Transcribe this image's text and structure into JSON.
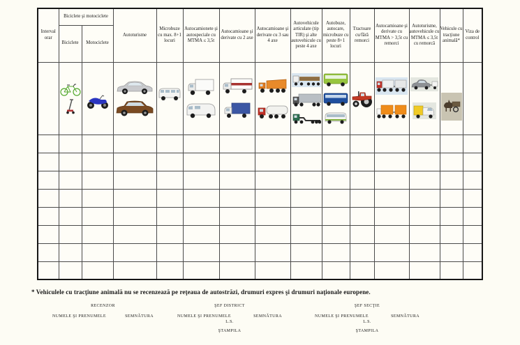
{
  "table": {
    "corner_header": "Interval orar",
    "group_header": "Biciclete şi motociclete",
    "columns": [
      {
        "label": "Biciclete",
        "images": [
          "bicycle-icon",
          "kick-scooter-icon"
        ]
      },
      {
        "label": "Motociclete",
        "images": [
          "motorcycle-icon"
        ]
      },
      {
        "label": "Autoturisme",
        "images": [
          "sedan-car-icon",
          "suv-car-icon"
        ]
      },
      {
        "label": "Microbuze cu max. 8+1 locuri",
        "images": [
          "minibus-icon"
        ]
      },
      {
        "label": "Autocamionete şi autospeciale cu MTMA ≤ 3,5t",
        "images": [
          "light-box-truck-icon",
          "cargo-van-icon"
        ]
      },
      {
        "label": "Autocamioane şi derivate cu 2 axe",
        "images": [
          "box-truck-2-axle-icon",
          "tarpaulin-truck-icon"
        ]
      },
      {
        "label": "Autocamioane şi derivate cu 3 sau 4 axe",
        "images": [
          "dump-truck-icon",
          "tanker-truck-icon"
        ]
      },
      {
        "label": "Autovehicule articulate (tip TIR) şi alte autovehicule cu peste 4 axe",
        "images": [
          "timber-truck-icon",
          "semi-trailer-truck-icon",
          "low-loader-truck-icon"
        ]
      },
      {
        "label": "Autobuze, autocare, microbuze cu peste 8+1 locuri",
        "images": [
          "city-bus-icon",
          "coach-bus-icon",
          "large-minibus-icon"
        ]
      },
      {
        "label": "Tractoare cu/fără remorci",
        "images": [
          "farm-tractor-icon"
        ]
      },
      {
        "label": "Autocamioane şi derivate cu MTMA > 3,5t cu remorci",
        "images": [
          "truck-with-trailer-icon",
          "orange-truck-with-trailer-icon"
        ]
      },
      {
        "label": "Autoturisme, autovehicule cu MTMA ≤ 3,5t cu remorcă",
        "images": [
          "car-with-trailer-icon",
          "small-delivery-van-icon"
        ]
      },
      {
        "label": "Vehicule cu tracţiune animală*",
        "images": [
          "horse-cart-icon"
        ]
      },
      {
        "label": "Viza de control",
        "images": []
      }
    ],
    "empty_rows": 8
  },
  "footnote": "* Vehiculele cu tracţiune animală nu se recenzează pe reţeaua de autostrăzi, drumuri expres şi drumuri naţionale europene.",
  "signatures": [
    {
      "title": "RECENZOR",
      "name_label": "NUMELE ŞI PRENUMELE",
      "signature_label": "SEMNĂTURA",
      "ls_label": "",
      "stamp_label": ""
    },
    {
      "title": "ŞEF DISTRICT",
      "name_label": "NUMELE ŞI PRENUMELE",
      "signature_label": "SEMNĂTURA",
      "ls_label": "L.S.",
      "stamp_label": "ŞTAMPILA"
    },
    {
      "title": "ŞEF SECŢIE",
      "name_label": "NUMELE ŞI PRENUMELE",
      "signature_label": "SEMNĂTURA",
      "ls_label": "L.S.",
      "stamp_label": "ŞTAMPILA"
    }
  ]
}
